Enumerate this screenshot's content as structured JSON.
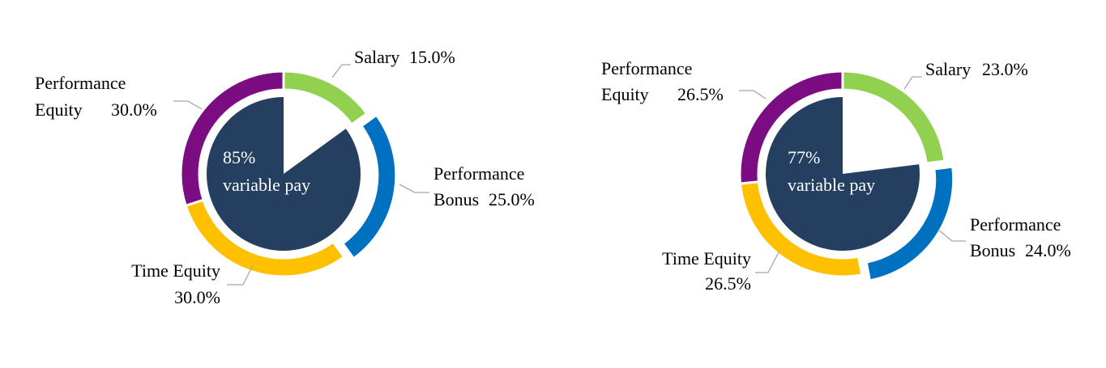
{
  "chart_data": [
    {
      "type": "donut",
      "categories": [
        "Salary",
        "Performance Bonus",
        "Time Equity",
        "Performance Equity"
      ],
      "values": [
        15.0,
        25.0,
        30.0,
        30.0
      ],
      "value_labels": [
        "15.0%",
        "25.0%",
        "30.0%",
        "30.0%"
      ],
      "colors": [
        "#92d050",
        "#0070c0",
        "#ffc000",
        "#7b0c82"
      ],
      "exploded": [
        false,
        true,
        false,
        false
      ],
      "inner_value": 85,
      "inner_value_label": "85%",
      "inner_label": "variable pay",
      "inner_color": "#243f60"
    },
    {
      "type": "donut",
      "categories": [
        "Salary",
        "Performance Bonus",
        "Time Equity",
        "Performance Equity"
      ],
      "values": [
        23.0,
        24.0,
        26.5,
        26.5
      ],
      "value_labels": [
        "23.0%",
        "24.0%",
        "26.5%",
        "26.5%"
      ],
      "colors": [
        "#92d050",
        "#0070c0",
        "#ffc000",
        "#7b0c82"
      ],
      "exploded": [
        false,
        true,
        false,
        false
      ],
      "inner_value": 77,
      "inner_value_label": "77%",
      "inner_label": "variable pay",
      "inner_color": "#243f60"
    }
  ]
}
